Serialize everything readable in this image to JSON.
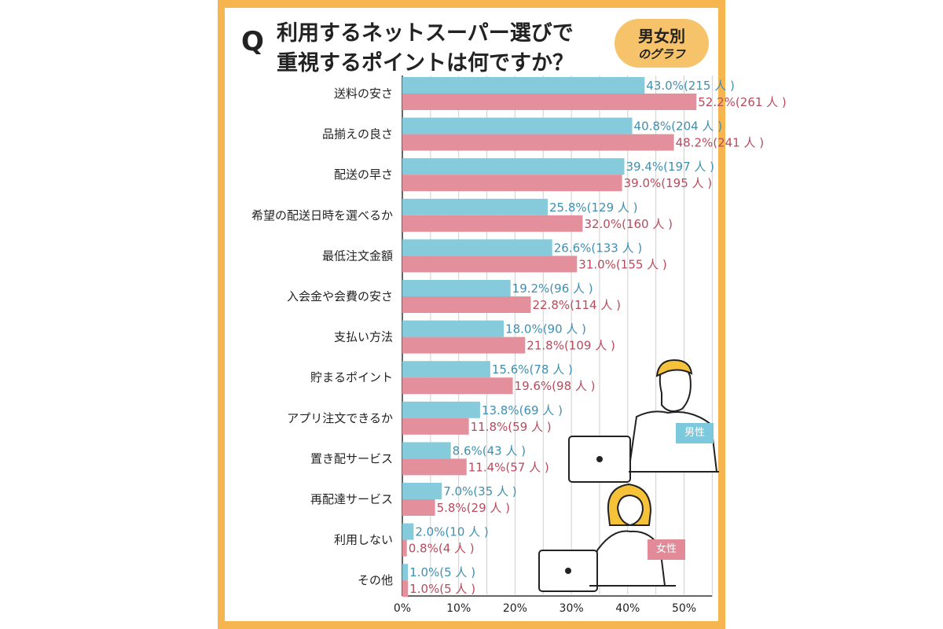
{
  "title": {
    "q": "Q",
    "line1": "利用するネットスーパー選びで",
    "line2": "重視するポイントは何ですか？"
  },
  "badge": {
    "line1": "男女別",
    "line2": "のグラフ"
  },
  "colors": {
    "male": "#85cbdb",
    "female": "#e48f9c",
    "male_text": "#3f8fb0",
    "female_text": "#b84a5c",
    "frame": "#f7b54f"
  },
  "figures": {
    "male_tag": "男性",
    "female_tag": "女性"
  },
  "chart_data": {
    "type": "bar",
    "orientation": "horizontal",
    "categories": [
      "送料の安さ",
      "品揃えの良さ",
      "配送の早さ",
      "希望の配送日時を選べるか",
      "最低注文金額",
      "入会金や会費の安さ",
      "支払い方法",
      "貯まるポイント",
      "アプリ注文できるか",
      "置き配サービス",
      "再配達サービス",
      "利用しない",
      "その他"
    ],
    "series": [
      {
        "name": "男性",
        "values": [
          43.0,
          40.8,
          39.4,
          25.8,
          26.6,
          19.2,
          18.0,
          15.6,
          13.8,
          8.6,
          7.0,
          2.0,
          1.0
        ],
        "labels": [
          "43.0%(215 人 )",
          "40.8%(204 人 )",
          "39.4%(197 人 )",
          "25.8%(129 人 )",
          "26.6%(133 人 )",
          "19.2%(96 人 )",
          "18.0%(90 人 )",
          "15.6%(78 人 )",
          "13.8%(69 人 )",
          "8.6%(43 人 )",
          "7.0%(35 人 )",
          "2.0%(10 人 )",
          "1.0%(5 人 )"
        ]
      },
      {
        "name": "女性",
        "values": [
          52.2,
          48.2,
          39.0,
          32.0,
          31.0,
          22.8,
          21.8,
          19.6,
          11.8,
          11.4,
          5.8,
          0.8,
          1.0
        ],
        "labels": [
          "52.2%(261 人 )",
          "48.2%(241 人 )",
          "39.0%(195 人 )",
          "32.0%(160 人 )",
          "31.0%(155 人 )",
          "22.8%(114 人 )",
          "21.8%(109 人 )",
          "19.6%(98 人 )",
          "11.8%(59 人 )",
          "11.4%(57 人 )",
          "5.8%(29 人 )",
          "0.8%(4 人 )",
          "1.0%(5 人 )"
        ]
      }
    ],
    "x_ticks": [
      "0%",
      "10%",
      "20%",
      "30%",
      "40%",
      "50%"
    ],
    "xlim": [
      0,
      55
    ],
    "grid": true
  }
}
